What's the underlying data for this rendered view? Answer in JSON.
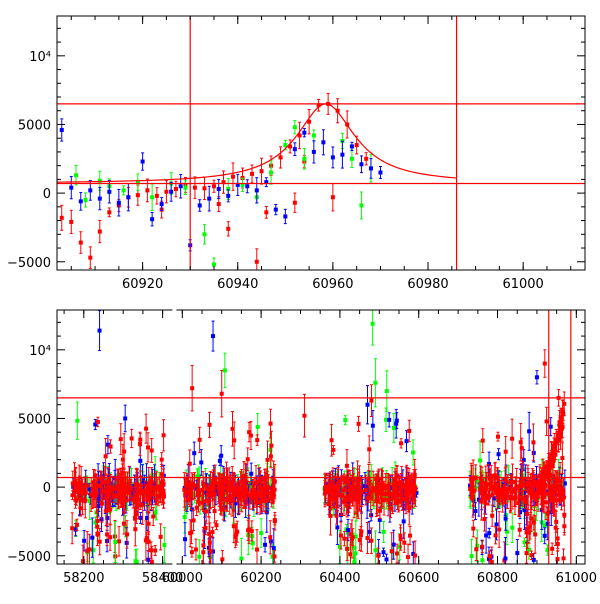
{
  "colors": {
    "red": "#ff0000",
    "green": "#00ff00",
    "blue": "#0000ff",
    "frame": "#000000"
  },
  "chart_data": [
    {
      "type": "scatter",
      "title": "",
      "xlabel": "",
      "ylabel": "",
      "xlim": [
        60902,
        61013
      ],
      "ylim": [
        -5600,
        12900
      ],
      "xticks": [
        60920,
        60940,
        60960,
        60980,
        61000
      ],
      "xtick_labels": [
        "60920",
        "60940",
        "60960",
        "60980",
        "61000"
      ],
      "yticks": [
        -5000,
        0,
        5000,
        10000
      ],
      "ytick_labels": [
        "−5000",
        "0",
        "5000",
        "10⁴"
      ],
      "hlines": [
        6500,
        700
      ],
      "vlines": [
        60930,
        60986
      ],
      "model_curve": {
        "peak_x": 60958.5,
        "peak_y": 6500,
        "baseline": 700,
        "width": 7.5,
        "x_range": [
          60902,
          60986
        ]
      },
      "series": [
        {
          "color": "red",
          "points": [
            [
              60903,
              -1800
            ],
            [
              60905,
              -2100
            ],
            [
              60907,
              -3600
            ],
            [
              60909,
              -4700
            ],
            [
              60911,
              -2800
            ],
            [
              60913,
              -1400
            ],
            [
              60915,
              -900
            ],
            [
              60917,
              -300
            ],
            [
              60919,
              -150
            ],
            [
              60921,
              200
            ],
            [
              60923,
              -200
            ],
            [
              60925,
              100
            ],
            [
              60927,
              300
            ],
            [
              60929,
              600
            ],
            [
              60931,
              400
            ],
            [
              60933,
              350
            ],
            [
              60935,
              500
            ],
            [
              60937,
              800
            ],
            [
              60939,
              1200
            ],
            [
              60941,
              1100
            ],
            [
              60943,
              1400
            ],
            [
              60945,
              1600
            ],
            [
              60947,
              2000
            ],
            [
              60949,
              2600
            ],
            [
              60951,
              3400
            ],
            [
              60953,
              4200
            ],
            [
              60955,
              5200
            ],
            [
              60957,
              6400
            ],
            [
              60959,
              6500
            ],
            [
              60961,
              6000
            ],
            [
              60963,
              5000
            ],
            [
              60965,
              3500
            ],
            [
              60967,
              2500
            ],
            [
              60944,
              -5000
            ],
            [
              60938,
              -2600
            ],
            [
              60946,
              -1400
            ],
            [
              60952,
              -700
            ],
            [
              60936,
              -800
            ],
            [
              60924,
              -1200
            ],
            [
              60954,
              2300
            ],
            [
              60960,
              -300
            ]
          ]
        },
        {
          "color": "green",
          "points": [
            [
              60906,
              1300
            ],
            [
              60908,
              -500
            ],
            [
              60911,
              900
            ],
            [
              60913,
              500
            ],
            [
              60916,
              200
            ],
            [
              60919,
              800
            ],
            [
              60922,
              -300
            ],
            [
              60926,
              700
            ],
            [
              60929,
              400
            ],
            [
              60933,
              -3000
            ],
            [
              60935,
              -5200
            ],
            [
              60938,
              300
            ],
            [
              60941,
              600
            ],
            [
              60944,
              -300
            ],
            [
              60947,
              1500
            ],
            [
              60950,
              3500
            ],
            [
              60952,
              4800
            ],
            [
              60954,
              2500
            ],
            [
              60956,
              4200
            ],
            [
              60962,
              3800
            ],
            [
              60964,
              2500
            ],
            [
              60966,
              -900
            ],
            [
              60968,
              1800
            ]
          ]
        },
        {
          "color": "blue",
          "points": [
            [
              60903,
              4600
            ],
            [
              60905,
              400
            ],
            [
              60907,
              -600
            ],
            [
              60909,
              200
            ],
            [
              60911,
              -400
            ],
            [
              60913,
              100
            ],
            [
              60915,
              -700
            ],
            [
              60917,
              -300
            ],
            [
              60920,
              2300
            ],
            [
              60922,
              -1900
            ],
            [
              60924,
              -800
            ],
            [
              60926,
              100
            ],
            [
              60928,
              500
            ],
            [
              60930,
              -3800
            ],
            [
              60932,
              -900
            ],
            [
              60934,
              -400
            ],
            [
              60936,
              300
            ],
            [
              60938,
              -200
            ],
            [
              60940,
              600
            ],
            [
              60942,
              500
            ],
            [
              60944,
              200
            ],
            [
              60946,
              800
            ],
            [
              60948,
              -1200
            ],
            [
              60950,
              -1700
            ],
            [
              60952,
              3200
            ],
            [
              60954,
              4400
            ],
            [
              60956,
              3000
            ],
            [
              60958,
              3700
            ],
            [
              60960,
              2600
            ],
            [
              60962,
              2800
            ],
            [
              60964,
              3400
            ],
            [
              60966,
              2100
            ],
            [
              60968,
              1800
            ],
            [
              60970,
              1500
            ]
          ]
        }
      ]
    },
    {
      "type": "scatter",
      "title": "",
      "xlabel": "",
      "ylabel": "",
      "xlim": [
        58132,
        61022
      ],
      "ylim": [
        -5600,
        12900
      ],
      "axis_break": [
        58430,
        59980
      ],
      "xticks": [
        58200,
        58400,
        60000,
        60200,
        60400,
        60600,
        60800,
        61000
      ],
      "xtick_labels": [
        "58200",
        "58400",
        "60000",
        "60200",
        "60400",
        "60600",
        "60800",
        "61000"
      ],
      "yticks": [
        -5000,
        0,
        5000,
        10000
      ],
      "ytick_labels": [
        "−5000",
        "0",
        "5000",
        "10⁴"
      ],
      "hlines": [
        6500,
        700
      ],
      "vlines": [
        60930,
        60986
      ],
      "observing_seasons": [
        [
          58170,
          58405
        ],
        [
          60005,
          60235
        ],
        [
          60360,
          60595
        ],
        [
          60730,
          60972
        ]
      ],
      "series": [
        {
          "color": "red",
          "points": [
            [
              60025,
              7200
            ],
            [
              60100,
              6800
            ],
            [
              60310,
              5200
            ],
            [
              60480,
              6300
            ],
            [
              60920,
              9000
            ],
            [
              60955,
              6500
            ],
            [
              60960,
              3800
            ],
            [
              58330,
              -2300
            ],
            [
              60480,
              -3900
            ]
          ]
        },
        {
          "color": "green",
          "points": [
            [
              60108,
              8500
            ],
            [
              60483,
              11900
            ],
            [
              60490,
              7600
            ],
            [
              60519,
              7000
            ],
            [
              58280,
              -4000
            ],
            [
              60150,
              -5200
            ]
          ]
        },
        {
          "color": "blue",
          "points": [
            [
              58240,
              11400
            ],
            [
              60078,
              11000
            ],
            [
              58305,
              5000
            ],
            [
              60470,
              6000
            ],
            [
              60525,
              4900
            ],
            [
              60900,
              8000
            ],
            [
              60935,
              4400
            ],
            [
              60210,
              -4200
            ],
            [
              60820,
              -5200
            ]
          ]
        }
      ]
    }
  ]
}
